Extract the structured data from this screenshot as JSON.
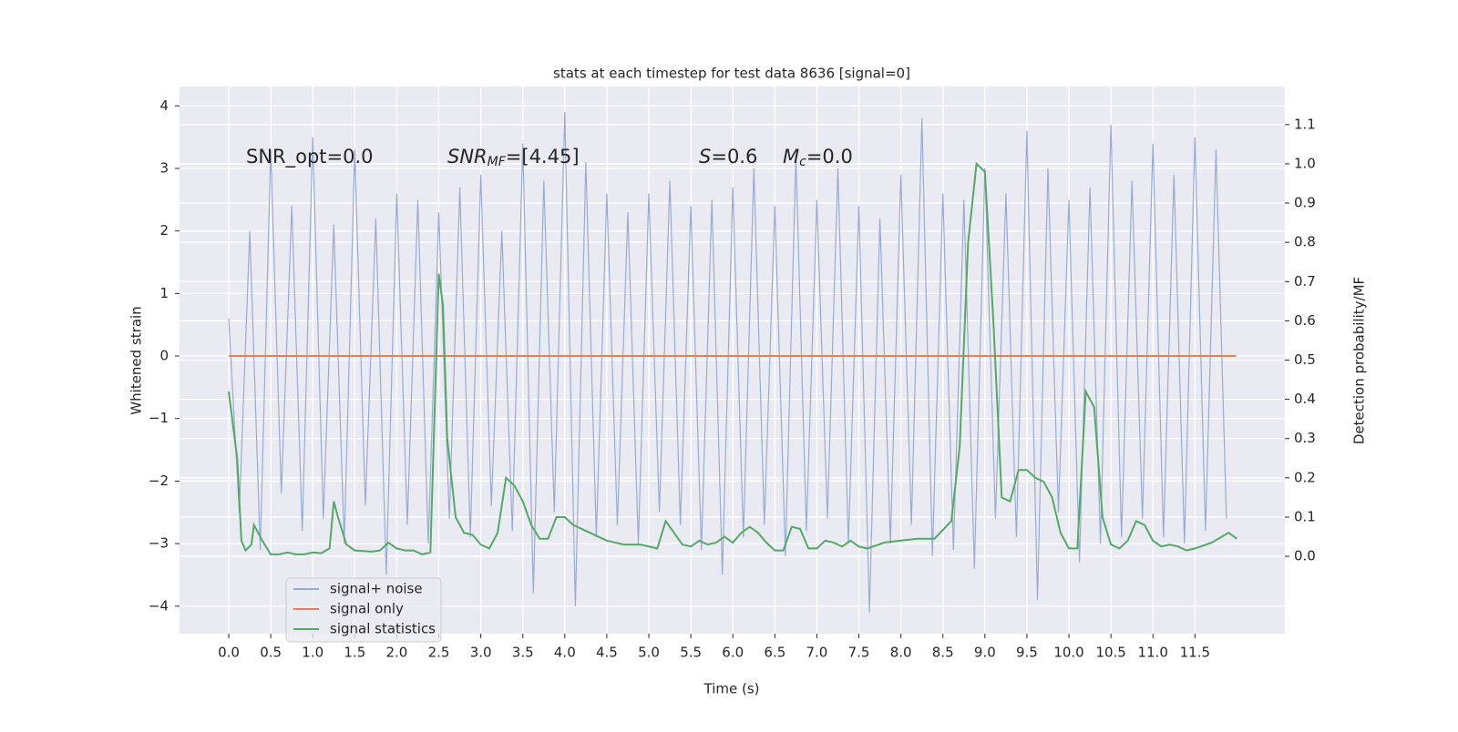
{
  "chart_data": {
    "type": "line",
    "title": "stats at each timestep for test data 8636 [signal=0]",
    "xlabel": "Time (s)",
    "ylabel": "Whitened strain",
    "y2label": "Detection probability/MF",
    "xlim": [
      -0.586,
      12.57
    ],
    "ylim": [
      -4.44,
      4.31
    ],
    "y2lim": [
      -0.197,
      1.197
    ],
    "grid": true,
    "background": "#eaeaf2",
    "legend": "lower left",
    "xticks": [
      {
        "value": 0,
        "label": "0.0"
      },
      {
        "value": 0.5,
        "label": "0.5"
      },
      {
        "value": 1,
        "label": "1.0"
      },
      {
        "value": 1.5,
        "label": "1.5"
      },
      {
        "value": 2,
        "label": "2.0"
      },
      {
        "value": 2.5,
        "label": "2.5"
      },
      {
        "value": 3,
        "label": "3.0"
      },
      {
        "value": 3.5,
        "label": "3.5"
      },
      {
        "value": 4,
        "label": "4.0"
      },
      {
        "value": 4.5,
        "label": "4.5"
      },
      {
        "value": 5,
        "label": "5.0"
      },
      {
        "value": 5.5,
        "label": "5.5"
      },
      {
        "value": 6,
        "label": "6.0"
      },
      {
        "value": 6.5,
        "label": "6.5"
      },
      {
        "value": 7,
        "label": "7.0"
      },
      {
        "value": 7.5,
        "label": "7.5"
      },
      {
        "value": 8,
        "label": "8.0"
      },
      {
        "value": 8.5,
        "label": "8.5"
      },
      {
        "value": 9,
        "label": "9.0"
      },
      {
        "value": 9.5,
        "label": "9.5"
      },
      {
        "value": 10,
        "label": "10.0"
      },
      {
        "value": 10.5,
        "label": "10.5"
      },
      {
        "value": 11,
        "label": "11.0"
      },
      {
        "value": 11.5,
        "label": "11.5"
      }
    ],
    "yticks": [
      {
        "value": -4,
        "label": "−4"
      },
      {
        "value": -3,
        "label": "−3"
      },
      {
        "value": -2,
        "label": "−2"
      },
      {
        "value": -1,
        "label": "−1"
      },
      0,
      1,
      2,
      3,
      4
    ],
    "y2ticks": [
      {
        "value": 0,
        "label": "0.0"
      },
      {
        "value": 0.1,
        "label": "0.1"
      },
      {
        "value": 0.2,
        "label": "0.2"
      },
      {
        "value": 0.3,
        "label": "0.3"
      },
      {
        "value": 0.4,
        "label": "0.4"
      },
      {
        "value": 0.5,
        "label": "0.5"
      },
      {
        "value": 0.6,
        "label": "0.6"
      },
      {
        "value": 0.7,
        "label": "0.7"
      },
      {
        "value": 0.8,
        "label": "0.8"
      },
      {
        "value": 0.9,
        "label": "0.9"
      },
      {
        "value": 1,
        "label": "1.0"
      },
      {
        "value": 1.1,
        "label": "1.1"
      }
    ],
    "annotations": [
      {
        "base": "SNR_opt=0.0"
      },
      {
        "base": "SNR",
        "sub": "MF",
        "after": "=[4.45]"
      },
      {
        "base": "S",
        "after": "=0.6"
      },
      {
        "base": "M",
        "sub": "c",
        "after": "=0.0"
      }
    ],
    "series": [
      {
        "name": "signal+ noise",
        "color": "#9aabd2",
        "x": [
          0,
          0.125,
          0.25,
          0.375,
          0.5,
          0.625,
          0.75,
          0.875,
          1,
          1.125,
          1.25,
          1.375,
          1.5,
          1.625,
          1.75,
          1.875,
          2,
          2.125,
          2.25,
          2.375,
          2.5,
          2.625,
          2.75,
          2.875,
          3,
          3.125,
          3.25,
          3.375,
          3.5,
          3.625,
          3.75,
          3.875,
          4,
          4.125,
          4.25,
          4.375,
          4.5,
          4.625,
          4.75,
          4.875,
          5,
          5.125,
          5.25,
          5.375,
          5.5,
          5.625,
          5.75,
          5.875,
          6,
          6.125,
          6.25,
          6.375,
          6.5,
          6.625,
          6.75,
          6.875,
          7,
          7.125,
          7.25,
          7.375,
          7.5,
          7.625,
          7.75,
          7.875,
          8,
          8.125,
          8.25,
          8.375,
          8.5,
          8.625,
          8.75,
          8.875,
          9,
          9.125,
          9.25,
          9.375,
          9.5,
          9.625,
          9.75,
          9.875,
          10,
          10.125,
          10.25,
          10.375,
          10.5,
          10.625,
          10.75,
          10.875,
          11,
          11.125,
          11.25,
          11.375,
          11.5,
          11.625,
          11.75,
          11.875
        ],
        "values": [
          0.6,
          -2.5,
          2.0,
          -3.1,
          3.3,
          -2.2,
          2.4,
          -2.8,
          3.5,
          -2.6,
          2.1,
          -3.0,
          3.3,
          -2.4,
          2.2,
          -3.5,
          2.6,
          -2.7,
          2.5,
          -3.0,
          2.3,
          -2.6,
          2.7,
          -2.9,
          2.9,
          -2.4,
          2.0,
          -2.8,
          3.4,
          -3.8,
          2.8,
          -2.5,
          3.9,
          -4.0,
          3.1,
          -2.9,
          2.6,
          -2.7,
          2.3,
          -3.0,
          2.6,
          -2.5,
          2.8,
          -2.7,
          2.4,
          -3.1,
          2.5,
          -3.5,
          2.7,
          -2.9,
          3.0,
          -2.7,
          2.4,
          -3.2,
          3.2,
          -2.8,
          2.5,
          -2.6,
          3.0,
          -3.0,
          2.4,
          -4.1,
          2.2,
          -3.0,
          2.9,
          -2.7,
          3.8,
          -3.2,
          2.6,
          -3.1,
          2.5,
          -3.4,
          3.0,
          -2.6,
          2.6,
          -2.9,
          3.6,
          -3.9,
          3.0,
          -2.5,
          2.5,
          -3.3,
          2.7,
          -3.0,
          3.7,
          -2.9,
          2.8,
          -2.6,
          3.4,
          -2.9,
          2.9,
          -3.0,
          3.5,
          -2.8,
          3.3,
          -2.6
        ]
      },
      {
        "name": "signal only",
        "color": "#dd8452",
        "x": [
          0,
          11.99
        ],
        "values": [
          0,
          0
        ]
      },
      {
        "name": "signal statistics",
        "color": "#55a868",
        "axis": "y2",
        "x": [
          0,
          0.1,
          0.15,
          0.2,
          0.27,
          0.3,
          0.4,
          0.5,
          0.6,
          0.7,
          0.8,
          0.9,
          1,
          1.1,
          1.2,
          1.25,
          1.3,
          1.4,
          1.5,
          1.7,
          1.8,
          1.9,
          2,
          2.1,
          2.2,
          2.3,
          2.4,
          2.5,
          2.55,
          2.6,
          2.7,
          2.8,
          2.9,
          3,
          3.1,
          3.2,
          3.3,
          3.4,
          3.5,
          3.6,
          3.7,
          3.8,
          3.9,
          4,
          4.1,
          4.3,
          4.5,
          4.7,
          4.9,
          5.1,
          5.2,
          5.3,
          5.4,
          5.5,
          5.6,
          5.7,
          5.8,
          5.9,
          6,
          6.1,
          6.2,
          6.3,
          6.4,
          6.5,
          6.6,
          6.7,
          6.8,
          6.9,
          7,
          7.1,
          7.2,
          7.3,
          7.4,
          7.5,
          7.6,
          7.8,
          8,
          8.2,
          8.4,
          8.6,
          8.7,
          8.8,
          8.9,
          9,
          9.1,
          9.2,
          9.3,
          9.4,
          9.5,
          9.6,
          9.7,
          9.8,
          9.9,
          10,
          10.1,
          10.2,
          10.3,
          10.4,
          10.5,
          10.6,
          10.7,
          10.8,
          10.9,
          11,
          11.1,
          11.2,
          11.3,
          11.4,
          11.5,
          11.7,
          11.9,
          12
        ],
        "values": [
          0.42,
          0.25,
          0.04,
          0.015,
          0.03,
          0.08,
          0.04,
          0.005,
          0.005,
          0.01,
          0.005,
          0.005,
          0.01,
          0.008,
          0.02,
          0.14,
          0.1,
          0.03,
          0.015,
          0.012,
          0.015,
          0.035,
          0.02,
          0.015,
          0.015,
          0.005,
          0.01,
          0.72,
          0.64,
          0.3,
          0.1,
          0.06,
          0.055,
          0.03,
          0.02,
          0.06,
          0.2,
          0.18,
          0.14,
          0.08,
          0.045,
          0.045,
          0.1,
          0.1,
          0.08,
          0.06,
          0.04,
          0.03,
          0.03,
          0.02,
          0.09,
          0.06,
          0.03,
          0.025,
          0.04,
          0.03,
          0.035,
          0.05,
          0.035,
          0.06,
          0.075,
          0.06,
          0.035,
          0.015,
          0.015,
          0.075,
          0.07,
          0.02,
          0.02,
          0.04,
          0.035,
          0.025,
          0.04,
          0.025,
          0.02,
          0.035,
          0.04,
          0.045,
          0.045,
          0.09,
          0.28,
          0.8,
          1.0,
          0.98,
          0.6,
          0.15,
          0.14,
          0.22,
          0.22,
          0.2,
          0.19,
          0.15,
          0.06,
          0.02,
          0.02,
          0.42,
          0.38,
          0.1,
          0.03,
          0.02,
          0.04,
          0.09,
          0.08,
          0.04,
          0.025,
          0.03,
          0.025,
          0.015,
          0.02,
          0.035,
          0.06,
          0.045
        ]
      }
    ]
  }
}
